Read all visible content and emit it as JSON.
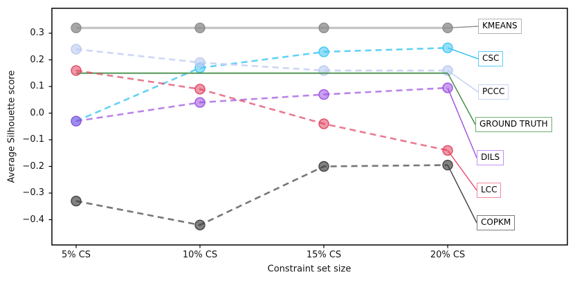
{
  "chart_data": {
    "type": "line",
    "title": "",
    "xlabel": "Constraint set size",
    "ylabel": "Average Silhouette score",
    "categories": [
      "5% CS",
      "10% CS",
      "15% CS",
      "20% CS"
    ],
    "yticks": [
      "0.3",
      "0.2",
      "0.1",
      "0.0",
      "−0.1",
      "−0.2",
      "−0.3",
      "−0.4"
    ],
    "ylim": [
      -0.49,
      0.39
    ],
    "grid": false,
    "legend_position": "right, boxed labels inside axes connected by leader lines",
    "series": [
      {
        "name": "KMEANS",
        "values": [
          0.32,
          0.32,
          0.32,
          0.32
        ],
        "color": "#c6c6c6",
        "marker_color": "#8a8a8a",
        "marker_opacity": 0.75,
        "leader_color": "#909090",
        "legend_border": "#b2b2b2",
        "line_style": "solid",
        "line_width": 3.4,
        "line_opacity": 1,
        "markers": true
      },
      {
        "name": "CSC",
        "values": [
          -0.03,
          0.17,
          0.23,
          0.245
        ],
        "color": "#3cc5f2",
        "marker_color": "#3cc5f2",
        "marker_opacity": 0.55,
        "leader_color": "#29bdf0",
        "legend_border": "#5ccdf5",
        "line_style": "dashed",
        "line_width": 2.6,
        "line_opacity": 0.8,
        "markers": true
      },
      {
        "name": "PCCC",
        "values": [
          0.24,
          0.19,
          0.16,
          0.16
        ],
        "color": "#c6d3f4",
        "marker_color": "#b9c9f0",
        "marker_opacity": 0.6,
        "leader_color": "#bfcdf2",
        "legend_border": "#c9d5f5",
        "line_style": "dashed",
        "line_width": 2.6,
        "line_opacity": 0.9,
        "markers": true
      },
      {
        "name": "GROUND TRUTH",
        "values": [
          0.15,
          0.15,
          0.15,
          0.15
        ],
        "color": "#3c8a41",
        "marker_color": "#3c8a41",
        "marker_opacity": 0.5,
        "leader_color": "#3c8a41",
        "legend_border": "#6fae6f",
        "line_style": "solid",
        "line_width": 2.2,
        "line_opacity": 0.8,
        "markers": false
      },
      {
        "name": "DILS",
        "values": [
          -0.03,
          0.04,
          0.07,
          0.095
        ],
        "color": "#9b4ee0",
        "marker_color": "#9b4ee0",
        "marker_opacity": 0.55,
        "leader_color": "#9b4ee0",
        "legend_border": "#c08ff2",
        "line_style": "dashed",
        "line_width": 2.6,
        "line_opacity": 0.7,
        "markers": true
      },
      {
        "name": "LCC",
        "values": [
          0.16,
          0.09,
          -0.04,
          -0.14
        ],
        "color": "#e0425f",
        "marker_color": "#e0425f",
        "marker_opacity": 0.55,
        "leader_color": "#e8486a",
        "legend_border": "#f2889c",
        "line_style": "dashed",
        "line_width": 2.6,
        "line_opacity": 0.7,
        "markers": true
      },
      {
        "name": "COPKM",
        "values": [
          -0.33,
          -0.42,
          -0.2,
          -0.195
        ],
        "color": "#4a4a4a",
        "marker_color": "#3d3d3d",
        "marker_opacity": 0.65,
        "leader_color": "#3f3f3f",
        "legend_border": "#7a7a7a",
        "line_style": "dashed",
        "line_width": 2.6,
        "line_opacity": 0.75,
        "markers": true
      }
    ]
  }
}
